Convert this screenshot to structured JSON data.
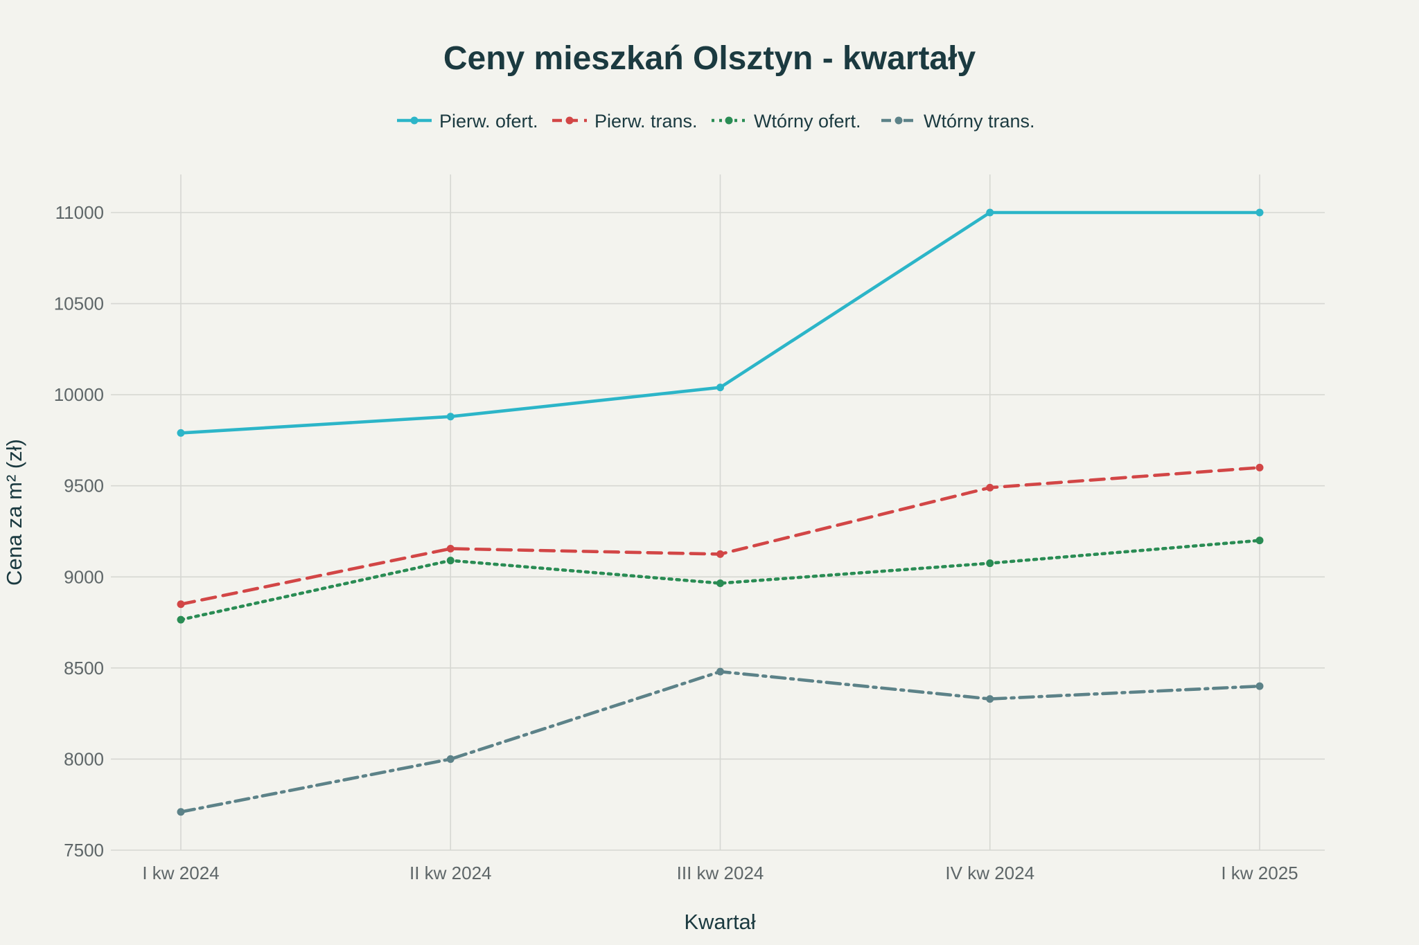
{
  "chart_data": {
    "type": "line",
    "title": "Ceny mieszkań Olsztyn - kwartały",
    "xlabel": "Kwartał",
    "ylabel": "Cena za m² (zł)",
    "categories": [
      "I kw 2024",
      "II kw 2024",
      "III kw 2024",
      "IV kw 2024",
      "I kw 2025"
    ],
    "ylim": [
      7500,
      11100
    ],
    "yticks": [
      7500,
      8000,
      8500,
      9000,
      9500,
      10000,
      10500,
      11000
    ],
    "grid": true,
    "legend_position": "top",
    "series": [
      {
        "name": "Pierw. ofert.",
        "values": [
          9790,
          9880,
          10040,
          11000,
          11000
        ],
        "color": "#2cb5c8",
        "dash": "solid"
      },
      {
        "name": "Pierw. trans.",
        "values": [
          8850,
          9155,
          9125,
          9490,
          9600
        ],
        "color": "#d24646",
        "dash": "dash"
      },
      {
        "name": "Wtórny ofert.",
        "values": [
          8765,
          9090,
          8965,
          9075,
          9200
        ],
        "color": "#2a8c54",
        "dash": "dot"
      },
      {
        "name": "Wtórny trans.",
        "values": [
          7710,
          8000,
          8480,
          8330,
          8400
        ],
        "color": "#5c8288",
        "dash": "dashdot"
      }
    ]
  }
}
